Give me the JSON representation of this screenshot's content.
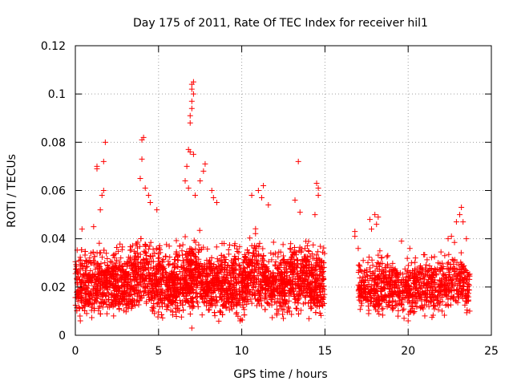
{
  "colors": {
    "points": "#ff0000",
    "axes": "#000000",
    "grid": "#a0a0a0"
  },
  "chart_data": {
    "type": "scatter",
    "title": "Day 175 of 2011, Rate Of TEC Index for receiver hil1",
    "xlabel": "GPS time / hours",
    "ylabel": "ROTI / TECUs",
    "xlim": [
      0,
      25
    ],
    "ylim": [
      0,
      0.12
    ],
    "xticks": [
      0,
      5,
      10,
      15,
      20,
      25
    ],
    "xtick_labels": [
      "0",
      "5",
      "10",
      "15",
      "20",
      "25"
    ],
    "yticks": [
      0,
      0.02,
      0.04,
      0.06,
      0.08,
      0.1,
      0.12
    ],
    "ytick_labels": [
      "0",
      "0.02",
      "0.04",
      "0.06",
      "0.08",
      "0.1",
      "0.12"
    ],
    "grid": true,
    "marker": "+",
    "series": [
      {
        "name": "ROTI hil1",
        "note": "dense band ~0.005-0.04 over 0-15 h and 17-23.7 h; gap 15-17 h; representative outliers listed",
        "segments": [
          {
            "x_range": [
              0.0,
              15.0
            ],
            "y_range": [
              0.005,
              0.04
            ],
            "count": 3200
          },
          {
            "x_range": [
              17.0,
              23.7
            ],
            "y_range": [
              0.006,
              0.035
            ],
            "count": 900
          }
        ],
        "points": [
          [
            0.4,
            0.044
          ],
          [
            1.1,
            0.045
          ],
          [
            1.5,
            0.052
          ],
          [
            1.6,
            0.058
          ],
          [
            1.7,
            0.06
          ],
          [
            1.7,
            0.072
          ],
          [
            1.8,
            0.08
          ],
          [
            1.3,
            0.07
          ],
          [
            1.3,
            0.069
          ],
          [
            4.0,
            0.081
          ],
          [
            4.1,
            0.082
          ],
          [
            4.0,
            0.073
          ],
          [
            3.9,
            0.065
          ],
          [
            4.2,
            0.061
          ],
          [
            4.4,
            0.058
          ],
          [
            4.5,
            0.055
          ],
          [
            4.9,
            0.052
          ],
          [
            6.6,
            0.064
          ],
          [
            6.7,
            0.07
          ],
          [
            6.8,
            0.077
          ],
          [
            6.9,
            0.076
          ],
          [
            7.1,
            0.075
          ],
          [
            6.9,
            0.088
          ],
          [
            6.9,
            0.091
          ],
          [
            7.0,
            0.094
          ],
          [
            7.0,
            0.097
          ],
          [
            7.1,
            0.1
          ],
          [
            7.0,
            0.102
          ],
          [
            7.0,
            0.104
          ],
          [
            7.1,
            0.105
          ],
          [
            6.8,
            0.061
          ],
          [
            7.2,
            0.058
          ],
          [
            7.7,
            0.068
          ],
          [
            7.8,
            0.071
          ],
          [
            7.5,
            0.064
          ],
          [
            8.2,
            0.06
          ],
          [
            8.3,
            0.057
          ],
          [
            8.5,
            0.055
          ],
          [
            10.6,
            0.058
          ],
          [
            11.0,
            0.06
          ],
          [
            11.3,
            0.062
          ],
          [
            11.2,
            0.057
          ],
          [
            11.6,
            0.054
          ],
          [
            13.4,
            0.072
          ],
          [
            13.2,
            0.056
          ],
          [
            13.5,
            0.051
          ],
          [
            14.5,
            0.063
          ],
          [
            14.6,
            0.061
          ],
          [
            14.6,
            0.058
          ],
          [
            14.4,
            0.05
          ],
          [
            0.1,
            0.023
          ],
          [
            0.3,
            0.006
          ],
          [
            2.3,
            0.008
          ],
          [
            7.0,
            0.003
          ],
          [
            9.9,
            0.006
          ],
          [
            12.5,
            0.007
          ],
          [
            13.7,
            0.013
          ],
          [
            13.8,
            0.016
          ],
          [
            16.8,
            0.043
          ],
          [
            16.8,
            0.041
          ],
          [
            17.0,
            0.036
          ],
          [
            17.3,
            0.031
          ],
          [
            17.5,
            0.025
          ],
          [
            17.7,
            0.048
          ],
          [
            17.8,
            0.044
          ],
          [
            18.0,
            0.05
          ],
          [
            18.2,
            0.049
          ],
          [
            18.1,
            0.046
          ],
          [
            18.3,
            0.035
          ],
          [
            18.6,
            0.028
          ],
          [
            19.0,
            0.018
          ],
          [
            19.4,
            0.016
          ],
          [
            19.6,
            0.039
          ],
          [
            20.1,
            0.036
          ],
          [
            20.2,
            0.03
          ],
          [
            20.4,
            0.027
          ],
          [
            20.6,
            0.024
          ],
          [
            20.8,
            0.02
          ],
          [
            21.2,
            0.021
          ],
          [
            21.5,
            0.026
          ],
          [
            21.8,
            0.03
          ],
          [
            22.2,
            0.033
          ],
          [
            22.4,
            0.04
          ],
          [
            22.6,
            0.041
          ],
          [
            22.9,
            0.047
          ],
          [
            23.1,
            0.05
          ],
          [
            23.2,
            0.053
          ],
          [
            23.3,
            0.047
          ],
          [
            23.5,
            0.04
          ],
          [
            23.6,
            0.025
          ],
          [
            23.7,
            0.01
          ],
          [
            20.0,
            0.006
          ],
          [
            21.0,
            0.008
          ]
        ]
      }
    ]
  }
}
